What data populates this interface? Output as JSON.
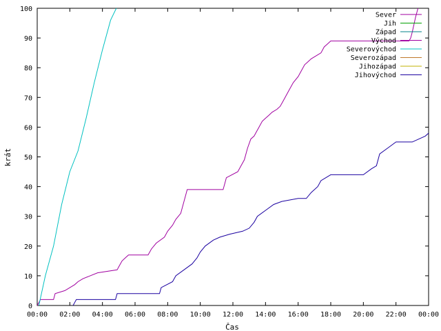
{
  "chart_data": {
    "type": "line",
    "xlabel": "Čas",
    "ylabel": "krát",
    "xlim": [
      0,
      24
    ],
    "ylim": [
      0,
      100
    ],
    "x_ticks": [
      "00:00",
      "02:00",
      "04:00",
      "06:00",
      "08:00",
      "10:00",
      "12:00",
      "14:00",
      "16:00",
      "18:00",
      "20:00",
      "22:00",
      "00:00"
    ],
    "y_ticks": [
      "0",
      "10",
      "20",
      "30",
      "40",
      "50",
      "60",
      "70",
      "80",
      "90",
      "100"
    ],
    "legend_position": "top-right",
    "grid": false,
    "series": [
      {
        "name": "Sever",
        "color": "#a000a0",
        "x": [],
        "y": []
      },
      {
        "name": "Jih",
        "color": "#00a000",
        "x": [],
        "y": []
      },
      {
        "name": "Západ",
        "color": "#00808a",
        "x": [],
        "y": []
      },
      {
        "name": "Východ",
        "color": "#a000a0",
        "x": [
          0.0,
          0.1,
          0.2,
          1.0,
          1.1,
          1.7,
          2.3,
          2.5,
          2.8,
          3.7,
          4.9,
          5.0,
          5.2,
          5.4,
          5.6,
          6.8,
          7.0,
          7.3,
          7.8,
          8.0,
          8.3,
          8.5,
          8.8,
          9.0,
          9.2,
          11.4,
          11.5,
          11.6,
          12.3,
          12.5,
          12.7,
          12.9,
          13.1,
          13.3,
          13.4,
          13.6,
          13.8,
          14.0,
          14.2,
          14.4,
          14.7,
          14.9,
          15.1,
          15.3,
          15.5,
          15.7,
          16.0,
          16.2,
          16.4,
          16.6,
          16.8,
          17.4,
          17.6,
          17.8,
          18.0,
          19.0,
          20.0,
          21.0,
          22.0,
          22.8,
          22.9,
          23.0,
          23.2,
          23.35
        ],
        "y": [
          0,
          1,
          2,
          2,
          4,
          5,
          7,
          8,
          9,
          11,
          12,
          13,
          15,
          16,
          17,
          17,
          19,
          21,
          23,
          25,
          27,
          29,
          31,
          35,
          39,
          39,
          41,
          43,
          45,
          47,
          49,
          53,
          56,
          57,
          58,
          60,
          62,
          63,
          64,
          65,
          66,
          67,
          69,
          71,
          73,
          75,
          77,
          79,
          81,
          82,
          83,
          85,
          87,
          88,
          89,
          89,
          89,
          89,
          89,
          89,
          90,
          92,
          97,
          100
        ]
      },
      {
        "name": "Severovýchod",
        "color": "#00c0c0",
        "x": [
          0.1,
          0.5,
          1.0,
          1.5,
          2.0,
          2.5,
          3.0,
          3.5,
          4.0,
          4.5,
          4.85
        ],
        "y": [
          0,
          10,
          20,
          34,
          45,
          52,
          63,
          75,
          86,
          96,
          100
        ]
      },
      {
        "name": "Severozápad",
        "color": "#c0782a",
        "x": [],
        "y": []
      },
      {
        "name": "Jihozápad",
        "color": "#c0b000",
        "x": [],
        "y": []
      },
      {
        "name": "Jihovýchod",
        "color": "#1a00a0",
        "x": [
          2.2,
          2.3,
          2.4,
          4.8,
          4.9,
          7.5,
          7.6,
          8.3,
          8.5,
          9.0,
          9.5,
          9.8,
          10.0,
          10.3,
          10.8,
          11.2,
          11.8,
          12.6,
          13.0,
          13.3,
          13.5,
          14.0,
          14.5,
          15.0,
          16.0,
          16.5,
          16.8,
          17.2,
          17.4,
          17.7,
          18.0,
          19.0,
          20.0,
          20.5,
          20.8,
          21.0,
          21.5,
          22.0,
          23.0,
          23.8,
          24.0
        ],
        "y": [
          0,
          1,
          2,
          2,
          4,
          4,
          6,
          8,
          10,
          12,
          14,
          16,
          18,
          20,
          22,
          23,
          24,
          25,
          26,
          28,
          30,
          32,
          34,
          35,
          36,
          36,
          38,
          40,
          42,
          43,
          44,
          44,
          44,
          46,
          47,
          51,
          53,
          55,
          55,
          57,
          58
        ]
      }
    ]
  }
}
